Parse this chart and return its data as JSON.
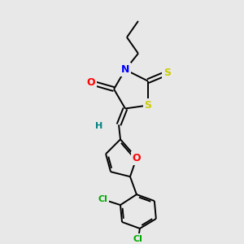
{
  "background_color": "#e8e8e8",
  "atom_colors": {
    "N": "#0000ff",
    "O": "#ff0000",
    "S_thione": "#cccc00",
    "S_ring": "#cccc00",
    "Cl": "#00aa00",
    "C": "#000000",
    "H": "#008080"
  },
  "figsize": [
    3.0,
    3.0
  ],
  "dpi": 100
}
